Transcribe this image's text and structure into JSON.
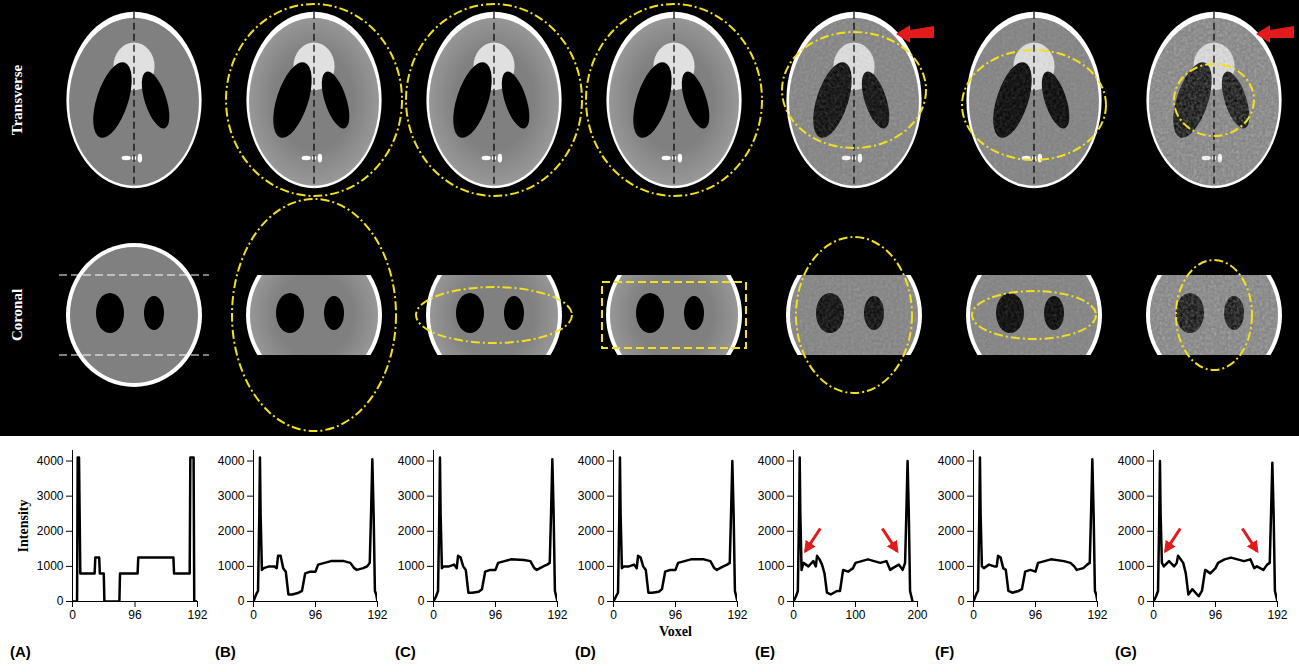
{
  "figure": {
    "row_labels": [
      "Transverse",
      "Coronal"
    ]
  },
  "chart_data": [
    {
      "type": "line",
      "title": "(A)",
      "y_label": "Intensity",
      "color": "#000000",
      "x": [
        0,
        7,
        8,
        10,
        12,
        13,
        34,
        35,
        41,
        42,
        48,
        49,
        72,
        73,
        100,
        101,
        155,
        156,
        180,
        181,
        184,
        186,
        187,
        192
      ],
      "values": [
        0,
        0,
        4100,
        4100,
        800,
        800,
        800,
        1250,
        1250,
        800,
        800,
        0,
        0,
        800,
        800,
        1250,
        1250,
        800,
        800,
        4100,
        4100,
        4100,
        0,
        0
      ],
      "xlim": [
        0,
        192
      ],
      "xticks": [
        0,
        96,
        192
      ],
      "ylim": [
        0,
        4300
      ],
      "yticks": [
        0,
        1000,
        2000,
        3000,
        4000
      ]
    },
    {
      "type": "line",
      "title": "(B)",
      "color": "#000000",
      "x": [
        0,
        4,
        7,
        9,
        10,
        11,
        13,
        16,
        24,
        32,
        36,
        38,
        42,
        46,
        50,
        54,
        60,
        70,
        75,
        80,
        88,
        96,
        100,
        110,
        120,
        140,
        150,
        156,
        160,
        170,
        176,
        180,
        182,
        184,
        186,
        188,
        190,
        192
      ],
      "values": [
        0,
        200,
        300,
        2500,
        4100,
        2500,
        900,
        950,
        1000,
        1000,
        950,
        1300,
        1300,
        950,
        850,
        200,
        200,
        250,
        300,
        800,
        850,
        850,
        1050,
        1100,
        1150,
        1150,
        1100,
        950,
        900,
        950,
        1000,
        1100,
        2500,
        4050,
        2500,
        300,
        200,
        0
      ],
      "xlim": [
        0,
        192
      ],
      "xticks": [
        0,
        96,
        192
      ],
      "ylim": [
        0,
        4300
      ],
      "yticks": [
        0,
        1000,
        2000,
        3000,
        4000
      ]
    },
    {
      "type": "line",
      "title": "(C)",
      "color": "#000000",
      "x": [
        0,
        4,
        7,
        9,
        10,
        11,
        13,
        16,
        24,
        32,
        36,
        38,
        42,
        46,
        50,
        54,
        60,
        70,
        75,
        80,
        88,
        96,
        100,
        110,
        120,
        140,
        150,
        156,
        160,
        170,
        176,
        180,
        182,
        184,
        186,
        188,
        190,
        192
      ],
      "values": [
        0,
        150,
        300,
        2500,
        4100,
        2500,
        950,
        1000,
        1000,
        1050,
        950,
        1300,
        1250,
        1000,
        900,
        250,
        250,
        280,
        350,
        850,
        900,
        900,
        1100,
        1150,
        1200,
        1180,
        1150,
        950,
        900,
        1000,
        1050,
        1100,
        2500,
        4050,
        2500,
        300,
        150,
        0
      ],
      "xlim": [
        0,
        192
      ],
      "xticks": [
        0,
        96,
        192
      ],
      "ylim": [
        0,
        4300
      ],
      "yticks": [
        0,
        1000,
        2000,
        3000,
        4000
      ]
    },
    {
      "type": "line",
      "title": "(D)",
      "x_label": "Voxel",
      "color": "#000000",
      "x": [
        0,
        4,
        7,
        9,
        10,
        11,
        13,
        16,
        24,
        32,
        36,
        38,
        42,
        46,
        50,
        54,
        60,
        70,
        75,
        80,
        88,
        96,
        100,
        110,
        120,
        140,
        150,
        156,
        160,
        170,
        176,
        180,
        182,
        184,
        186,
        188,
        190,
        192
      ],
      "values": [
        0,
        150,
        250,
        2500,
        4100,
        2500,
        950,
        1000,
        1000,
        1050,
        950,
        1300,
        1250,
        1000,
        900,
        250,
        250,
        280,
        350,
        850,
        900,
        900,
        1100,
        1150,
        1200,
        1200,
        1150,
        950,
        900,
        1000,
        1050,
        1100,
        2500,
        4000,
        2500,
        300,
        150,
        0
      ],
      "xlim": [
        0,
        192
      ],
      "xticks": [
        0,
        96,
        192
      ],
      "ylim": [
        0,
        4300
      ],
      "yticks": [
        0,
        1000,
        2000,
        3000,
        4000
      ]
    },
    {
      "type": "line",
      "title": "(E)",
      "color": "#000000",
      "x": [
        0,
        4,
        7,
        9,
        10,
        11,
        13,
        16,
        24,
        32,
        36,
        38,
        42,
        46,
        50,
        54,
        60,
        70,
        75,
        80,
        88,
        96,
        100,
        110,
        120,
        140,
        150,
        156,
        160,
        170,
        176,
        180,
        182,
        184,
        186,
        188,
        190,
        192
      ],
      "values": [
        0,
        150,
        300,
        2500,
        4100,
        2500,
        900,
        1100,
        1000,
        1150,
        1000,
        1300,
        1200,
        1050,
        800,
        250,
        200,
        300,
        300,
        900,
        850,
        950,
        1100,
        1150,
        1200,
        1100,
        1150,
        900,
        950,
        1050,
        900,
        1100,
        2500,
        4000,
        2500,
        300,
        150,
        0
      ],
      "xlim": [
        0,
        200
      ],
      "xticks": [
        0,
        100,
        200
      ],
      "ylim": [
        0,
        4300
      ],
      "yticks": [
        0,
        1000,
        2000,
        3000,
        4000
      ]
    },
    {
      "type": "line",
      "title": "(F)",
      "color": "#000000",
      "x": [
        0,
        4,
        7,
        9,
        10,
        11,
        13,
        16,
        24,
        32,
        36,
        38,
        42,
        46,
        50,
        54,
        60,
        70,
        75,
        80,
        88,
        96,
        100,
        110,
        120,
        140,
        150,
        156,
        160,
        170,
        176,
        180,
        182,
        184,
        186,
        188,
        190,
        192
      ],
      "values": [
        0,
        200,
        300,
        2500,
        4100,
        2500,
        1000,
        950,
        1050,
        1000,
        1000,
        1300,
        1250,
        950,
        900,
        300,
        250,
        300,
        350,
        850,
        900,
        850,
        1100,
        1150,
        1200,
        1150,
        1100,
        1000,
        900,
        950,
        1050,
        1100,
        2500,
        4050,
        2500,
        300,
        200,
        0
      ],
      "xlim": [
        0,
        192
      ],
      "xticks": [
        0,
        96,
        192
      ],
      "ylim": [
        0,
        4300
      ],
      "yticks": [
        0,
        1000,
        2000,
        3000,
        4000
      ]
    },
    {
      "type": "line",
      "title": "(G)",
      "color": "#000000",
      "x": [
        0,
        4,
        7,
        9,
        10,
        11,
        13,
        16,
        24,
        32,
        36,
        38,
        42,
        46,
        50,
        54,
        60,
        70,
        75,
        80,
        88,
        96,
        100,
        110,
        120,
        140,
        150,
        156,
        160,
        170,
        176,
        180,
        182,
        184,
        186,
        188,
        190,
        192
      ],
      "values": [
        0,
        150,
        300,
        2500,
        4000,
        2500,
        1100,
        1000,
        1150,
        1000,
        1100,
        1300,
        1200,
        1100,
        800,
        200,
        350,
        150,
        300,
        900,
        800,
        950,
        1100,
        1200,
        1250,
        1150,
        1200,
        950,
        1000,
        900,
        1050,
        1100,
        2500,
        3950,
        2500,
        300,
        150,
        0
      ],
      "xlim": [
        0,
        192
      ],
      "xticks": [
        0,
        96,
        192
      ],
      "ylim": [
        0,
        4300
      ],
      "yticks": [
        0,
        1000,
        2000,
        3000,
        4000
      ]
    }
  ]
}
